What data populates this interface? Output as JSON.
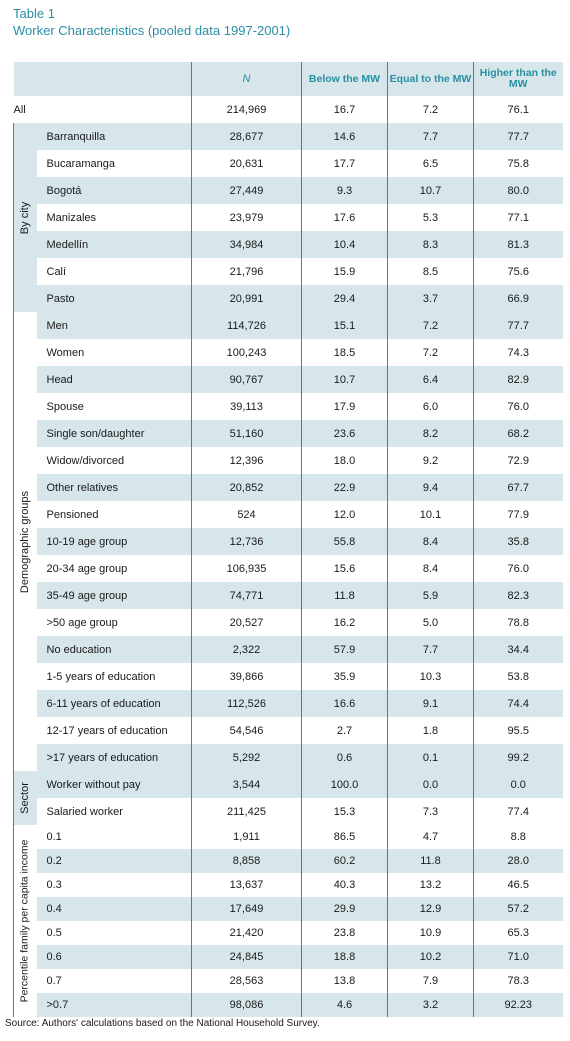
{
  "caption": {
    "line1": "Table 1",
    "line2": "Worker Characteristics (pooled data 1997-2001)"
  },
  "headers": {
    "n": "N",
    "below": "Below the MW",
    "equal": "Equal to the MW",
    "higher": "Higher than the MW"
  },
  "groups": {
    "city": "By city",
    "demo": "Demographic groups",
    "sector": "Sector",
    "pct": "Percentile family per capita income"
  },
  "all_row": {
    "label": "All",
    "n": "214,969",
    "below": "16.7",
    "equal": "7.2",
    "higher": "76.1"
  },
  "city_rows": [
    {
      "label": "Barranquilla",
      "n": "28,677",
      "below": "14.6",
      "equal": "7.7",
      "higher": "77.7"
    },
    {
      "label": "Bucaramanga",
      "n": "20,631",
      "below": "17.7",
      "equal": "6.5",
      "higher": "75.8"
    },
    {
      "label": "Bogotá",
      "n": "27,449",
      "below": "9.3",
      "equal": "10.7",
      "higher": "80.0"
    },
    {
      "label": "Manizales",
      "n": "23,979",
      "below": "17.6",
      "equal": "5.3",
      "higher": "77.1"
    },
    {
      "label": "Medellín",
      "n": "34,984",
      "below": "10.4",
      "equal": "8.3",
      "higher": "81.3"
    },
    {
      "label": "Calí",
      "n": "21,796",
      "below": "15.9",
      "equal": "8.5",
      "higher": "75.6"
    },
    {
      "label": "Pasto",
      "n": "20,991",
      "below": "29.4",
      "equal": "3.7",
      "higher": "66.9"
    }
  ],
  "demo_rows": [
    {
      "label": "Men",
      "n": "114,726",
      "below": "15.1",
      "equal": "7.2",
      "higher": "77.7"
    },
    {
      "label": "Women",
      "n": "100,243",
      "below": "18.5",
      "equal": "7.2",
      "higher": "74.3"
    },
    {
      "label": "Head",
      "n": "90,767",
      "below": "10.7",
      "equal": "6.4",
      "higher": "82.9"
    },
    {
      "label": "Spouse",
      "n": "39,113",
      "below": "17.9",
      "equal": "6.0",
      "higher": "76.0"
    },
    {
      "label": "Single son/daughter",
      "n": "51,160",
      "below": "23.6",
      "equal": "8.2",
      "higher": "68.2"
    },
    {
      "label": "Widow/divorced",
      "n": "12,396",
      "below": "18.0",
      "equal": "9.2",
      "higher": "72.9"
    },
    {
      "label": "Other relatives",
      "n": "20,852",
      "below": "22.9",
      "equal": "9.4",
      "higher": "67.7"
    },
    {
      "label": "Pensioned",
      "n": "524",
      "below": "12.0",
      "equal": "10.1",
      "higher": "77.9"
    },
    {
      "label": "10-19 age group",
      "n": "12,736",
      "below": "55.8",
      "equal": "8.4",
      "higher": "35.8"
    },
    {
      "label": "20-34 age group",
      "n": "106,935",
      "below": "15.6",
      "equal": "8.4",
      "higher": "76.0"
    },
    {
      "label": "35-49 age group",
      "n": "74,771",
      "below": "11.8",
      "equal": "5.9",
      "higher": "82.3"
    },
    {
      "label": ">50  age group",
      "n": "20,527",
      "below": "16.2",
      "equal": "5.0",
      "higher": "78.8"
    },
    {
      "label": "No education",
      "n": "2,322",
      "below": "57.9",
      "equal": "7.7",
      "higher": "34.4"
    },
    {
      "label": "1-5 years of education",
      "n": "39,866",
      "below": "35.9",
      "equal": "10.3",
      "higher": "53.8"
    },
    {
      "label": "6-11 years of education",
      "n": "112,526",
      "below": "16.6",
      "equal": "9.1",
      "higher": "74.4"
    },
    {
      "label": "12-17 years of education",
      "n": "54,546",
      "below": "2.7",
      "equal": "1.8",
      "higher": "95.5"
    },
    {
      "label": ">17 years of education",
      "n": "5,292",
      "below": "0.6",
      "equal": "0.1",
      "higher": "99.2"
    }
  ],
  "sector_rows": [
    {
      "label": "Worker without pay",
      "n": "3,544",
      "below": "100.0",
      "equal": "0.0",
      "higher": "0.0"
    },
    {
      "label": "Salaried worker",
      "n": "211,425",
      "below": "15.3",
      "equal": "7.3",
      "higher": "77.4"
    }
  ],
  "pct_rows": [
    {
      "label": "0.1",
      "n": "1,911",
      "below": "86.5",
      "equal": "4.7",
      "higher": "8.8"
    },
    {
      "label": "0.2",
      "n": "8,858",
      "below": "60.2",
      "equal": "11.8",
      "higher": "28.0"
    },
    {
      "label": "0.3",
      "n": "13,637",
      "below": "40.3",
      "equal": "13.2",
      "higher": "46.5"
    },
    {
      "label": "0.4",
      "n": "17,649",
      "below": "29.9",
      "equal": "12.9",
      "higher": "57.2"
    },
    {
      "label": "0.5",
      "n": "21,420",
      "below": "23.8",
      "equal": "10.9",
      "higher": "65.3"
    },
    {
      "label": "0.6",
      "n": "24,845",
      "below": "18.8",
      "equal": "10.2",
      "higher": "71.0"
    },
    {
      "label": "0.7",
      "n": "28,563",
      "below": "13.8",
      "equal": "7.9",
      "higher": "78.3"
    },
    {
      "label": ">0.7",
      "n": "98,086",
      "below": "4.6",
      "equal": "3.2",
      "higher": "92.23"
    }
  ],
  "source": "Source:  Authors' calculations based on the National Household Survey.",
  "colors": {
    "accent": "#2a8fa3",
    "shade": "#d6e6ea"
  }
}
